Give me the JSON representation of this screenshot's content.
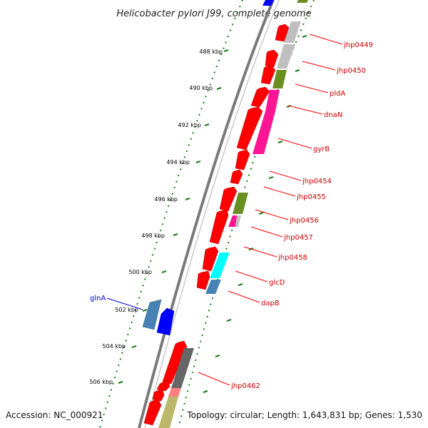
{
  "title": "Helicobacter pylori J99, complete genome",
  "footer": {
    "accession": "Accession: NC_000921",
    "summary": "Topology: circular; Length: 1,643,831 bp; Genes: 1,530"
  },
  "kbp_ticks": [
    "488 kbp",
    "490 kbp",
    "492 kbp",
    "494 kbp",
    "496 kbp",
    "498 kbp",
    "500 kbp",
    "502 kbp",
    "504 kbp",
    "506 kbp"
  ],
  "gene_labels": [
    "jhp0449",
    "jhp0450",
    "pldA",
    "dnaN",
    "gyrB",
    "jhp0454",
    "jhp0455",
    "jhp0456",
    "jhp0457",
    "jhp0458",
    "glcD",
    "dapB",
    "jhp0462"
  ],
  "left_gene_label": "glnA",
  "colors": {
    "forward_cds": "#ff0000",
    "reverse_cds": "#0000ff",
    "backbone": "#808080",
    "tick_dots": "#1a7a1a",
    "label_red": "#cc0000",
    "label_blue": "#0000cc",
    "cog_gray": "#bfbfbf",
    "cog_olive": "#6b8e23",
    "cog_magenta": "#ff1493",
    "cog_cyan": "#00ffff",
    "cog_steelblue": "#4682b4",
    "cog_darkgray": "#666666",
    "cog_pink": "#ff8080",
    "cog_khaki": "#bdb76b"
  }
}
